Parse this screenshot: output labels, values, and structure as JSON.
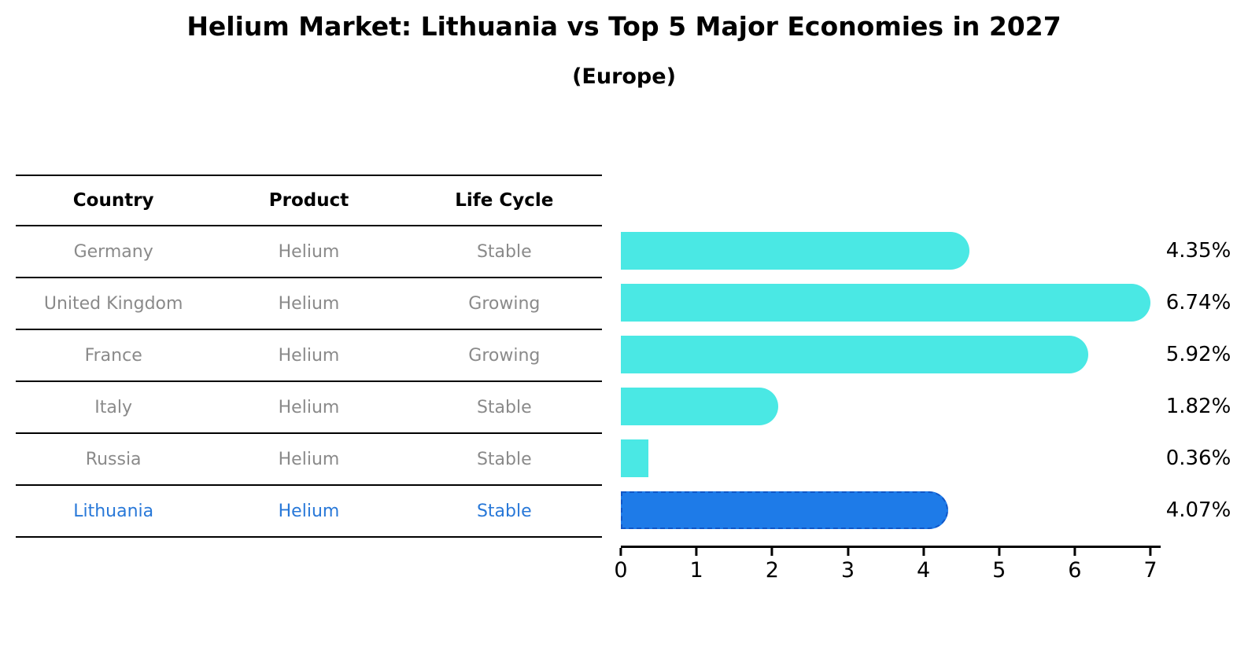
{
  "title": "Helium Market: Lithuania vs Top 5 Major Economies in 2027",
  "subtitle": "(Europe)",
  "table": {
    "headers": {
      "country": "Country",
      "product": "Product",
      "life_cycle": "Life Cycle"
    },
    "rows": [
      {
        "country": "Germany",
        "product": "Helium",
        "life_cycle": "Stable",
        "highlighted": false
      },
      {
        "country": "United Kingdom",
        "product": "Helium",
        "life_cycle": "Growing",
        "highlighted": false
      },
      {
        "country": "France",
        "product": "Helium",
        "life_cycle": "Growing",
        "highlighted": false
      },
      {
        "country": "Italy",
        "product": "Helium",
        "life_cycle": "Stable",
        "highlighted": false
      },
      {
        "country": "Russia",
        "product": "Helium",
        "life_cycle": "Stable",
        "highlighted": false
      },
      {
        "country": "Lithuania",
        "product": "Helium",
        "life_cycle": "Stable",
        "highlighted": true
      }
    ]
  },
  "chart_data": {
    "type": "bar",
    "orientation": "horizontal",
    "title": "Helium Market: Lithuania vs Top 5 Major Economies in 2027",
    "subtitle": "(Europe)",
    "categories": [
      "Germany",
      "United Kingdom",
      "France",
      "Italy",
      "Russia",
      "Lithuania"
    ],
    "values": [
      4.35,
      6.74,
      5.92,
      1.82,
      0.36,
      4.07
    ],
    "value_labels": [
      "4.35%",
      "6.74%",
      "5.92%",
      "1.82%",
      "0.36%",
      "4.07%"
    ],
    "unit": "%",
    "xlim": [
      0,
      7
    ],
    "x_ticks": [
      "0",
      "1",
      "2",
      "3",
      "4",
      "5",
      "6",
      "7"
    ],
    "grid": false,
    "legend": false,
    "highlight_index": 5,
    "bar_color": "#4ae8e4",
    "highlight_bar_color": "#1e7be8",
    "highlight_border_color": "#1057c8",
    "highlight_text_color": "#2878d8"
  },
  "colors": {
    "title_text": "#000000",
    "table_text": "#8a8a8a",
    "table_line": "#000000",
    "axis": "#000000",
    "background": "#ffffff"
  }
}
